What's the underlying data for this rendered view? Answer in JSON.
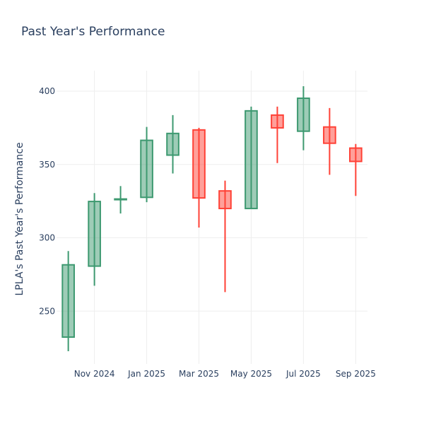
{
  "chart_data": {
    "type": "candlestick",
    "title": "Past Year's Performance",
    "y_label": "LPLA's Past Year's Performance",
    "x": [
      "2024-10",
      "2024-11",
      "2024-12",
      "2025-01",
      "2025-02",
      "2025-03",
      "2025-04",
      "2025-05",
      "2025-06",
      "2025-07",
      "2025-08",
      "2025-09"
    ],
    "open": [
      232.3,
      280.7,
      326.0,
      327.6,
      356.4,
      373.6,
      332.0,
      320.0,
      383.7,
      372.7,
      375.6,
      361.2
    ],
    "high": [
      291.0,
      330.5,
      335.3,
      375.6,
      383.7,
      375.0,
      339.0,
      389.5,
      389.5,
      403.4,
      388.5,
      364.0
    ],
    "low": [
      222.7,
      267.3,
      316.6,
      324.3,
      343.9,
      307.0,
      263.0,
      320.0,
      351.0,
      359.7,
      343.0,
      328.6
    ],
    "close": [
      281.6,
      324.8,
      326.5,
      366.5,
      371.2,
      327.2,
      320.0,
      386.6,
      375.0,
      395.2,
      364.5,
      352.1
    ],
    "increasing_color": "#3d9970",
    "decreasing_color": "#ff4136",
    "ylim": [
      214,
      414
    ],
    "yticks": [
      250,
      300,
      350,
      400
    ],
    "xticks": [
      {
        "value": "2024-11",
        "label": "Nov 2024"
      },
      {
        "value": "2025-01",
        "label": "Jan 2025"
      },
      {
        "value": "2025-03",
        "label": "Mar 2025"
      },
      {
        "value": "2025-05",
        "label": "May 2025"
      },
      {
        "value": "2025-07",
        "label": "Jul 2025"
      },
      {
        "value": "2025-09",
        "label": "Sep 2025"
      }
    ],
    "grid": true
  }
}
